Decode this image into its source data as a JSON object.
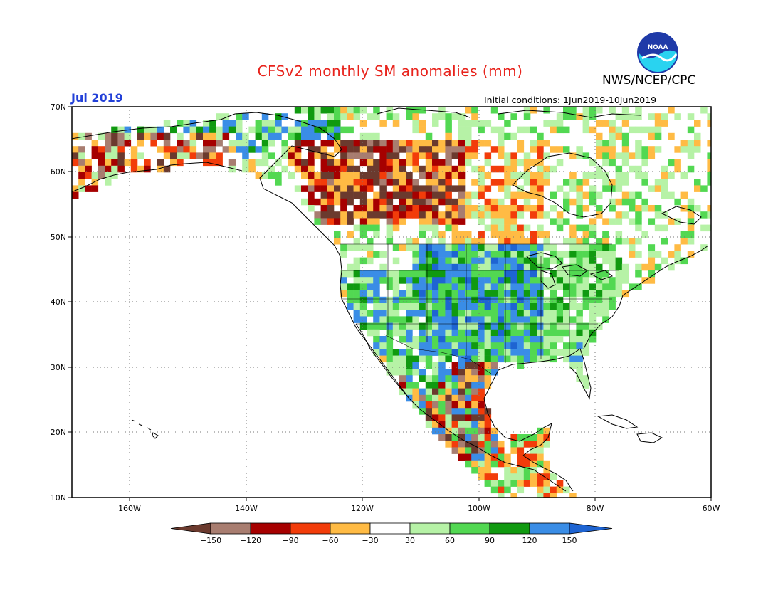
{
  "header": {
    "title": "CFSv2 monthly SM anomalies (mm)",
    "month": "Jul 2019",
    "agency": "NWS/NCEP/CPC",
    "initial_conditions": "Initial conditions: 1Jun2019-10Jun2019",
    "logo_text": "NOAA"
  },
  "map": {
    "lon_range": [
      -170,
      -60
    ],
    "lat_range": [
      10,
      70
    ],
    "lat_labels": [
      "70N",
      "60N",
      "50N",
      "40N",
      "30N",
      "20N",
      "10N"
    ],
    "lon_labels": [
      "160W",
      "140W",
      "120W",
      "100W",
      "80W",
      "60W"
    ],
    "grid_style": "dotted"
  },
  "colorbar": {
    "colors": [
      "#6b3a2e",
      "#a87d70",
      "#a60000",
      "#f23c0a",
      "#ffbb44",
      "#ffffff",
      "#b6f2a6",
      "#52d852",
      "#109a10",
      "#3a8de6",
      "#1e64d2"
    ],
    "labels": [
      "−150",
      "−120",
      "−90",
      "−60",
      "−30",
      "30",
      "60",
      "90",
      "120",
      "150"
    ]
  },
  "anomaly_regions": [
    {
      "region": "central-plains",
      "value": 150,
      "color": "#3a8de6"
    },
    {
      "region": "southern-plains",
      "value": 120,
      "color": "#3a8de6"
    },
    {
      "region": "midwest",
      "value": 90,
      "color": "#109a10"
    },
    {
      "region": "southeast",
      "value": 60,
      "color": "#b6f2a6"
    },
    {
      "region": "northwest-canada",
      "value": -90,
      "color": "#a60000"
    },
    {
      "region": "yukon",
      "value": -150,
      "color": "#6b3a2e"
    },
    {
      "region": "alaska-south",
      "value": -60,
      "color": "#f23c0a"
    },
    {
      "region": "northern-mexico",
      "value": -120,
      "color": "#a87d70"
    }
  ]
}
